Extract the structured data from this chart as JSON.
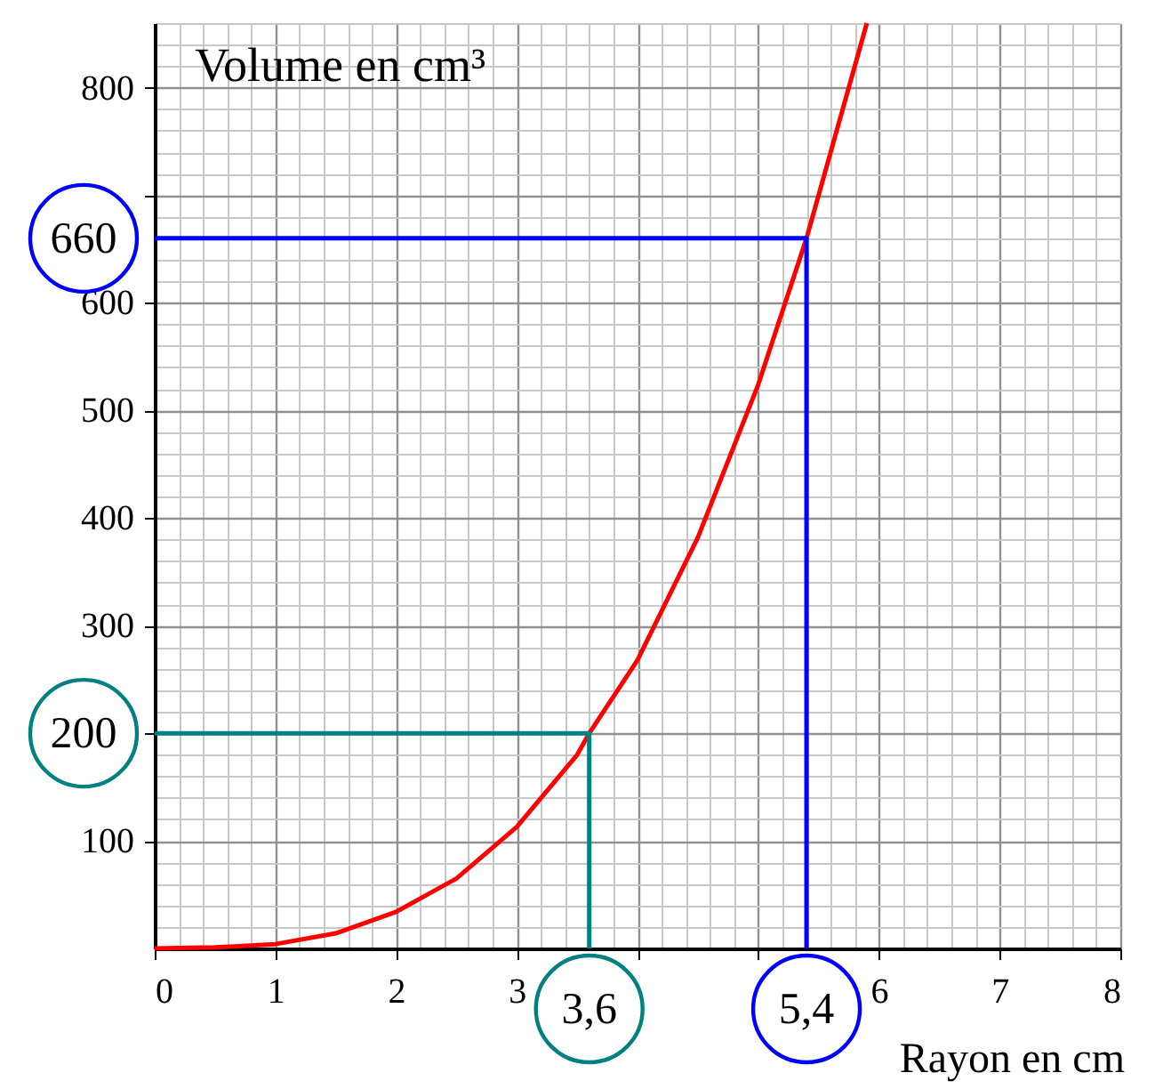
{
  "chart_data": {
    "type": "line",
    "xlabel": "Rayon en cm",
    "ylabel": "Volume en cm³",
    "xlim": [
      0,
      8
    ],
    "ylim": [
      0,
      860
    ],
    "xticks": [
      0,
      1,
      2,
      3,
      {
        "value": 4,
        "label": null
      },
      {
        "value": 5,
        "label": null
      },
      6,
      7,
      8
    ],
    "yticks": [
      100,
      {
        "value": 200,
        "label": null
      },
      300,
      400,
      500,
      600,
      {
        "value": 700,
        "label": null
      },
      800
    ],
    "grid": true,
    "marker": "none",
    "line_style": "solid",
    "series": [
      {
        "color": "#ff0000",
        "x": [
          0,
          0.5,
          1,
          1.5,
          2,
          2.5,
          3,
          3.5,
          3.6,
          4,
          4.5,
          5,
          5.4,
          5.9
        ],
        "values": [
          0,
          1,
          4,
          14,
          34,
          65,
          113,
          180,
          200,
          268,
          382,
          524,
          660,
          860
        ]
      },
      {
        "color": "#0000ff",
        "x": [
          0,
          5.4,
          5.4
        ],
        "values": [
          660,
          660,
          0
        ]
      },
      {
        "color": "#008080",
        "x": [
          0,
          3.6,
          3.6
        ],
        "values": [
          200,
          200,
          0
        ]
      }
    ],
    "annotations": [
      {
        "text": "660",
        "x": 0,
        "y": 660
      },
      {
        "text": "5,4",
        "x": 5.4,
        "y": 0
      },
      {
        "text": "200",
        "x": 0,
        "y": 200
      },
      {
        "text": "3,6",
        "x": 3.6,
        "y": 0
      }
    ]
  }
}
